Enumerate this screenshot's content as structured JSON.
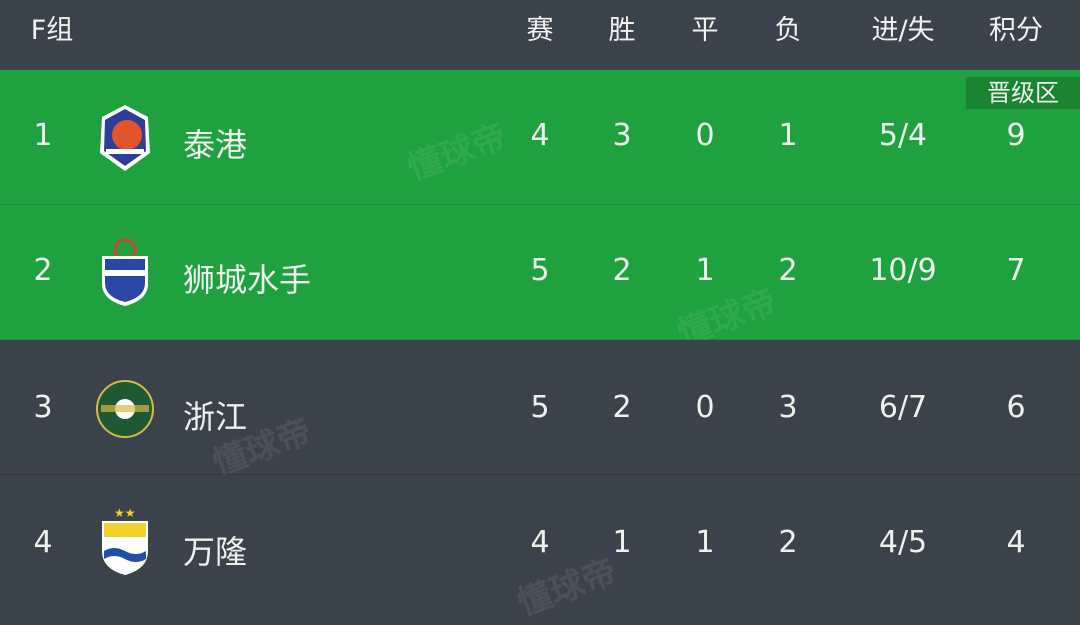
{
  "header": {
    "group": "F组",
    "columns": {
      "played": "赛",
      "won": "胜",
      "drawn": "平",
      "lost": "负",
      "goals": "进/失",
      "points": "积分"
    }
  },
  "qualify_badge": "晋级区",
  "watermark": "懂球帝",
  "colors": {
    "qualify_row": "#1fa13f",
    "normal_row": "#3a424c",
    "badge": "#1a8432"
  },
  "rows": [
    {
      "rank": "1",
      "team": "泰港",
      "logo": "port-fc-crest",
      "played": "4",
      "won": "3",
      "drawn": "0",
      "lost": "1",
      "goals": "5/4",
      "points": "9",
      "qualified": true
    },
    {
      "rank": "2",
      "team": "狮城水手",
      "logo": "lion-city-sailors-crest",
      "played": "5",
      "won": "2",
      "drawn": "1",
      "lost": "2",
      "goals": "10/9",
      "points": "7",
      "qualified": true
    },
    {
      "rank": "3",
      "team": "浙江",
      "logo": "zhejiang-crest",
      "played": "5",
      "won": "2",
      "drawn": "0",
      "lost": "3",
      "goals": "6/7",
      "points": "6",
      "qualified": false
    },
    {
      "rank": "4",
      "team": "万隆",
      "logo": "persib-crest",
      "played": "4",
      "won": "1",
      "drawn": "1",
      "lost": "2",
      "goals": "4/5",
      "points": "4",
      "qualified": false
    }
  ]
}
